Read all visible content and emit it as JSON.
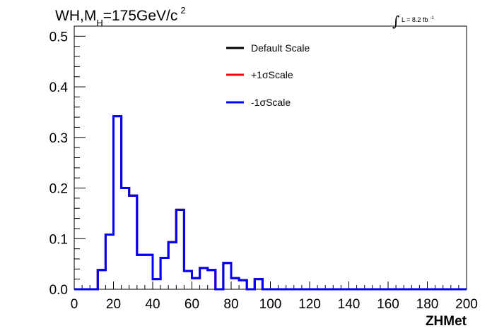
{
  "chart_data": {
    "type": "histogram",
    "title": {
      "prefix": "WH,M",
      "subscript": "H",
      "value": "=175GeV/c",
      "superscript": "2"
    },
    "luminosity": {
      "integral_symbol": "∫",
      "text": "L = 8.2 fb",
      "superscript": "-1"
    },
    "xlabel": "ZHMet",
    "ylabel": "",
    "xlim": [
      0,
      200
    ],
    "ylim": [
      0,
      0.52
    ],
    "x_ticks": [
      "0",
      "20",
      "40",
      "60",
      "80",
      "100",
      "120",
      "140",
      "160",
      "180",
      "200"
    ],
    "y_ticks": [
      "0.0",
      "0.1",
      "0.2",
      "0.3",
      "0.4",
      "0.5"
    ],
    "bin_width": 4,
    "bin_edges_start": 0,
    "legend_position": "top-center",
    "series": [
      {
        "name": "Default Scale",
        "color": "#000000",
        "values": [
          0,
          0,
          0,
          0.038,
          0.108,
          0.342,
          0.2,
          0.185,
          0.068,
          0.068,
          0.02,
          0.062,
          0.093,
          0.157,
          0.036,
          0.022,
          0.042,
          0.038,
          0,
          0.052,
          0.022,
          0.018,
          0,
          0.02,
          0,
          0,
          0,
          0,
          0,
          0,
          0,
          0,
          0,
          0,
          0,
          0,
          0,
          0,
          0,
          0,
          0,
          0,
          0,
          0,
          0,
          0,
          0,
          0,
          0,
          0
        ]
      },
      {
        "name": "+1σScale",
        "color": "#ff0000",
        "values": [
          0,
          0,
          0,
          0.038,
          0.108,
          0.342,
          0.2,
          0.185,
          0.068,
          0.068,
          0.02,
          0.062,
          0.093,
          0.157,
          0.036,
          0.022,
          0.042,
          0.038,
          0,
          0.052,
          0.022,
          0.018,
          0,
          0.02,
          0,
          0,
          0,
          0,
          0,
          0,
          0,
          0,
          0,
          0,
          0,
          0,
          0,
          0,
          0,
          0,
          0,
          0,
          0,
          0,
          0,
          0,
          0,
          0,
          0,
          0
        ]
      },
      {
        "name": "-1σScale",
        "color": "#0000ff",
        "values": [
          0,
          0,
          0,
          0.038,
          0.108,
          0.342,
          0.2,
          0.185,
          0.068,
          0.068,
          0.02,
          0.062,
          0.093,
          0.157,
          0.036,
          0.022,
          0.042,
          0.038,
          0,
          0.052,
          0.022,
          0.018,
          0,
          0.02,
          0,
          0,
          0,
          0,
          0,
          0,
          0,
          0,
          0,
          0,
          0,
          0,
          0,
          0,
          0,
          0,
          0,
          0,
          0,
          0,
          0,
          0,
          0,
          0,
          0,
          0
        ]
      }
    ]
  }
}
